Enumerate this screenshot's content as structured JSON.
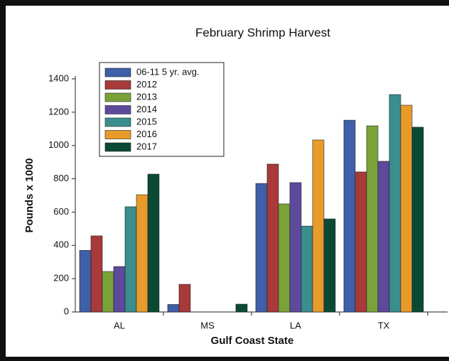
{
  "chart_data": {
    "type": "bar",
    "title": "February Shrimp Harvest",
    "x_label": "Gulf Coast State",
    "y_label": "Pounds x 1000",
    "categories": [
      "AL",
      "MS",
      "LA",
      "TX"
    ],
    "series": [
      {
        "name": "06-11 5 yr. avg.",
        "color": "#3f5fa8",
        "values": [
          370,
          45,
          772,
          1152
        ]
      },
      {
        "name": "2012",
        "color": "#a83a3a",
        "values": [
          457,
          166,
          888,
          841
        ]
      },
      {
        "name": "2013",
        "color": "#7aa23a",
        "values": [
          243,
          null,
          649,
          1118
        ]
      },
      {
        "name": "2014",
        "color": "#5e4a9c",
        "values": [
          273,
          null,
          777,
          905
        ]
      },
      {
        "name": "2015",
        "color": "#3a8e8e",
        "values": [
          632,
          null,
          516,
          1306
        ]
      },
      {
        "name": "2016",
        "color": "#e89a2a",
        "values": [
          704,
          null,
          1033,
          1242
        ]
      },
      {
        "name": "2017",
        "color": "#0a4a35",
        "values": [
          828,
          47,
          559,
          1110
        ]
      }
    ],
    "ylim": [
      0,
      1400
    ],
    "yticks": [
      0,
      200,
      400,
      600,
      800,
      1000,
      1200,
      1400
    ],
    "legend": "upper left"
  }
}
